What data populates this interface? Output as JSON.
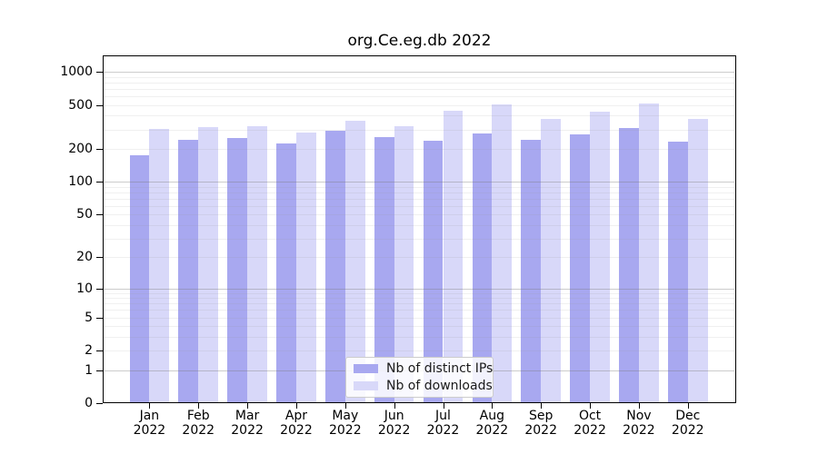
{
  "chart_data": {
    "type": "bar",
    "title": "org.Ce.eg.db 2022",
    "y_scale": "log1p",
    "y_ticks": [
      0,
      1,
      2,
      5,
      10,
      20,
      50,
      100,
      200,
      500,
      1000
    ],
    "ylim": [
      0,
      1400
    ],
    "grid": "horizontal major gridlines at powers of 10 with faint log minor gridlines",
    "legend_position": "lower center",
    "x_tick_year": "2022",
    "categories": [
      "Jan",
      "Feb",
      "Mar",
      "Apr",
      "May",
      "Jun",
      "Jul",
      "Aug",
      "Sep",
      "Oct",
      "Nov",
      "Dec"
    ],
    "series": [
      {
        "name": "Nb of distinct IPs",
        "color": "#a8a8f0",
        "values": [
          175,
          240,
          252,
          222,
          291,
          257,
          237,
          277,
          240,
          272,
          310,
          234
        ]
      },
      {
        "name": "Nb of downloads",
        "color": "#d8d8f9",
        "values": [
          302,
          317,
          321,
          281,
          357,
          319,
          445,
          506,
          373,
          437,
          513,
          375
        ]
      }
    ]
  }
}
